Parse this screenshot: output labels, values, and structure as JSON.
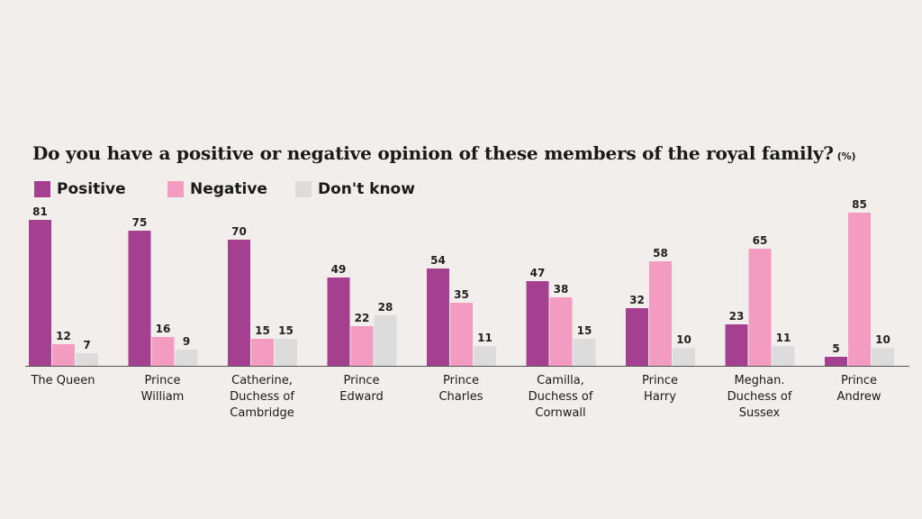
{
  "colors": {
    "positive": "#a4408f",
    "negative": "#f39bc1",
    "dont_know": "#dcdcdc",
    "axis": "#555555",
    "background": "#f2eeeb"
  },
  "chart_data": {
    "type": "bar",
    "title": "Do you have a positive or negative opinion of these members of the royal family?",
    "unit": "(%)",
    "xlabel": "",
    "ylabel": "",
    "ylim": [
      0,
      85
    ],
    "grid": false,
    "legend_position": "top-left",
    "categories": [
      "The Queen",
      "Prince William",
      "Catherine, Duchess of Cambridge",
      "Prince Edward",
      "Prince Charles",
      "Camilla, Duchess of Cornwall",
      "Prince Harry",
      "Meghan. Duchess of Sussex",
      "Prince Andrew"
    ],
    "category_lines": [
      [
        "The Queen"
      ],
      [
        "Prince",
        "William"
      ],
      [
        "Catherine,",
        "Duchess of",
        "Cambridge"
      ],
      [
        "Prince",
        "Edward"
      ],
      [
        "Prince",
        "Charles"
      ],
      [
        "Camilla,",
        "Duchess of",
        "Cornwall"
      ],
      [
        "Prince",
        "Harry"
      ],
      [
        "Meghan.",
        "Duchess of",
        "Sussex"
      ],
      [
        "Prince",
        "Andrew"
      ]
    ],
    "series": [
      {
        "name": "Positive",
        "values": [
          81,
          75,
          70,
          49,
          54,
          47,
          32,
          23,
          5
        ]
      },
      {
        "name": "Negative",
        "values": [
          12,
          16,
          15,
          22,
          35,
          38,
          58,
          65,
          85
        ]
      },
      {
        "name": "Don't know",
        "values": [
          7,
          9,
          15,
          28,
          11,
          15,
          10,
          11,
          10
        ]
      }
    ]
  }
}
